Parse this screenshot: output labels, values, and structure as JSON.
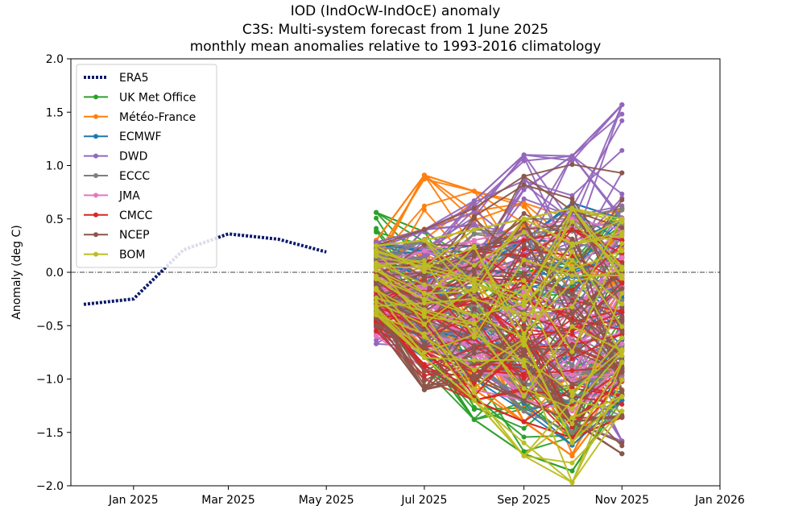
{
  "chart_data": {
    "type": "line",
    "title": [
      "IOD (IndOcW-IndOcE) anomaly",
      "C3S: Multi-system forecast from 1 June 2025",
      "monthly mean anomalies relative to 1993-2016 climatology"
    ],
    "xlabel": "",
    "ylabel": "Anomaly (deg C)",
    "x_range": [
      "2024-11-23",
      "2026-01-01"
    ],
    "ylim": [
      -2.0,
      2.0
    ],
    "x_ticks": [
      {
        "date": "2025-01-01",
        "label": "Jan 2025"
      },
      {
        "date": "2025-03-01",
        "label": "Mar 2025"
      },
      {
        "date": "2025-05-01",
        "label": "May 2025"
      },
      {
        "date": "2025-07-01",
        "label": "Jul 2025"
      },
      {
        "date": "2025-09-01",
        "label": "Sep 2025"
      },
      {
        "date": "2025-11-01",
        "label": "Nov 2025"
      },
      {
        "date": "2026-01-01",
        "label": "Jan 2026"
      }
    ],
    "y_ticks": [
      {
        "value": 2.0,
        "label": "2.0"
      },
      {
        "value": 1.5,
        "label": "1.5"
      },
      {
        "value": 1.0,
        "label": "1.0"
      },
      {
        "value": 0.5,
        "label": "0.5"
      },
      {
        "value": 0.0,
        "label": "0.0"
      },
      {
        "value": -0.5,
        "label": "−0.5"
      },
      {
        "value": -1.0,
        "label": "−1.0"
      },
      {
        "value": -1.5,
        "label": "−1.5"
      },
      {
        "value": -2.0,
        "label": "−2.0"
      }
    ],
    "grid": false,
    "zero_line": true,
    "legend_position": "top-left",
    "observed": {
      "name": "ERA5",
      "color": "#0c1a6b",
      "x": [
        "2024-12-01",
        "2025-01-01",
        "2025-02-01",
        "2025-03-01",
        "2025-04-01",
        "2025-05-01"
      ],
      "y": [
        -0.3,
        -0.25,
        0.21,
        0.36,
        0.31,
        0.19
      ]
    },
    "forecast_months": [
      "2025-06-01",
      "2025-07-01",
      "2025-08-01",
      "2025-09-01",
      "2025-10-01",
      "2025-11-01"
    ],
    "systems": [
      {
        "name": "UK Met Office",
        "color": "#2ca02c",
        "envelope": {
          "min": [
            -0.45,
            -0.9,
            -1.38,
            -1.7,
            -1.86,
            -1.2
          ],
          "max": [
            0.56,
            0.38,
            0.1,
            0.0,
            0.1,
            0.6
          ]
        }
      },
      {
        "name": "Météo-France",
        "color": "#ff7f0e",
        "envelope": {
          "min": [
            -0.4,
            -0.7,
            -1.1,
            -1.4,
            -1.72,
            -1.1
          ],
          "max": [
            0.3,
            0.91,
            0.76,
            0.65,
            0.5,
            0.6
          ]
        }
      },
      {
        "name": "ECMWF",
        "color": "#1f77b4",
        "envelope": {
          "min": [
            -0.5,
            -0.8,
            -1.0,
            -1.3,
            -1.62,
            -1.2
          ],
          "max": [
            0.28,
            0.2,
            0.25,
            0.3,
            0.65,
            0.5
          ]
        }
      },
      {
        "name": "DWD",
        "color": "#9467bd",
        "envelope": {
          "min": [
            -0.67,
            -0.7,
            -0.9,
            -1.2,
            -1.4,
            -1.58
          ],
          "max": [
            0.28,
            0.4,
            0.67,
            1.1,
            1.09,
            1.57
          ]
        }
      },
      {
        "name": "ECCC",
        "color": "#7f7f7f",
        "envelope": {
          "min": [
            -0.5,
            -0.7,
            -0.9,
            -1.3,
            -1.5,
            -1.35
          ],
          "max": [
            0.2,
            0.3,
            0.4,
            0.5,
            0.5,
            0.6
          ]
        }
      },
      {
        "name": "JMA",
        "color": "#e377c2",
        "envelope": {
          "min": [
            -0.6,
            -0.9,
            -1.1,
            -1.2,
            -1.3,
            -1.0
          ],
          "max": [
            0.1,
            0.2,
            0.3,
            0.4,
            0.5,
            0.4
          ]
        }
      },
      {
        "name": "CMCC",
        "color": "#d62728",
        "envelope": {
          "min": [
            -0.55,
            -1.0,
            -1.2,
            -1.4,
            -1.55,
            -1.36
          ],
          "max": [
            0.0,
            0.1,
            0.2,
            0.3,
            0.4,
            0.3
          ]
        }
      },
      {
        "name": "NCEP",
        "color": "#8c564b",
        "envelope": {
          "min": [
            -0.5,
            -1.1,
            -1.0,
            -1.2,
            -1.4,
            -1.7
          ],
          "max": [
            0.25,
            0.4,
            0.6,
            0.9,
            1.01,
            0.93
          ]
        }
      },
      {
        "name": "BOM",
        "color": "#bcbd22",
        "envelope": {
          "min": [
            -0.4,
            -0.8,
            -1.2,
            -1.72,
            -1.97,
            -1.3
          ],
          "max": [
            0.25,
            0.3,
            0.4,
            0.5,
            0.6,
            0.5
          ]
        }
      }
    ]
  }
}
